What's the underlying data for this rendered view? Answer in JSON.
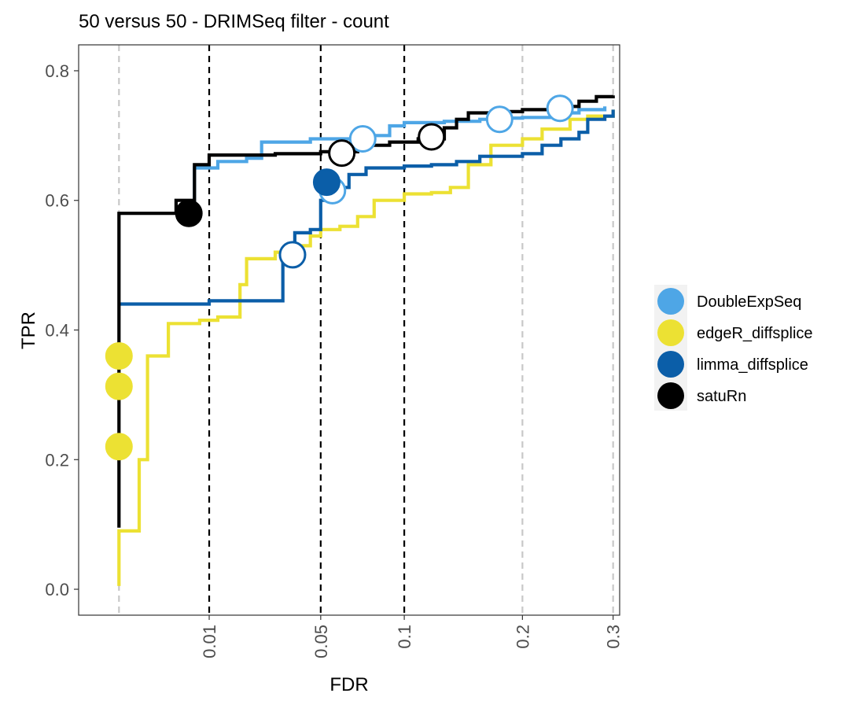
{
  "chart_data": {
    "type": "line",
    "title": "50 versus 50 - DRIMSeq filter - count",
    "xlabel": "FDR",
    "ylabel": "TPR",
    "x_scale": "sqrt",
    "xlim": [
      -0.002,
      0.308
    ],
    "ylim": [
      -0.04,
      0.84
    ],
    "x_ticks": [
      0.01,
      0.05,
      0.1,
      0.2,
      0.3
    ],
    "x_tick_labels": [
      "0.01",
      "0.05",
      "0.1",
      "0.2",
      "0.3"
    ],
    "y_ticks": [
      0.0,
      0.2,
      0.4,
      0.6,
      0.8
    ],
    "y_tick_labels": [
      "0.0",
      "0.2",
      "0.4",
      "0.6",
      "0.8"
    ],
    "fdr_thresholds": [
      0.01,
      0.05,
      0.1
    ],
    "grid_lines_x": [
      0,
      0.2,
      0.3
    ],
    "legend_position": "right",
    "series": [
      {
        "name": "DoubleExpSeq",
        "color": "#4ea6e6",
        "points": [
          [
            0.005,
            0.59
          ],
          [
            0.007,
            0.65
          ],
          [
            0.012,
            0.66
          ],
          [
            0.02,
            0.665
          ],
          [
            0.025,
            0.69
          ],
          [
            0.045,
            0.695
          ],
          [
            0.06,
            0.695
          ],
          [
            0.075,
            0.7
          ],
          [
            0.09,
            0.715
          ],
          [
            0.1,
            0.72
          ],
          [
            0.13,
            0.722
          ],
          [
            0.16,
            0.725
          ],
          [
            0.18,
            0.727
          ],
          [
            0.2,
            0.728
          ],
          [
            0.23,
            0.735
          ],
          [
            0.26,
            0.74
          ],
          [
            0.29,
            0.745
          ]
        ],
        "markers": [
          {
            "fdr": 0.056,
            "tpr": 0.615,
            "filled": false
          },
          {
            "fdr": 0.073,
            "tpr": 0.695,
            "filled": false
          },
          {
            "fdr": 0.178,
            "tpr": 0.725,
            "filled": false
          },
          {
            "fdr": 0.239,
            "tpr": 0.742,
            "filled": false
          }
        ]
      },
      {
        "name": "edgeR_diffsplice",
        "color": "#ece133",
        "points": [
          [
            0.0,
            0.005
          ],
          [
            0.0,
            0.09
          ],
          [
            0.0005,
            0.2
          ],
          [
            0.001,
            0.36
          ],
          [
            0.003,
            0.41
          ],
          [
            0.008,
            0.415
          ],
          [
            0.012,
            0.42
          ],
          [
            0.018,
            0.47
          ],
          [
            0.02,
            0.51
          ],
          [
            0.03,
            0.52
          ],
          [
            0.04,
            0.53
          ],
          [
            0.045,
            0.545
          ],
          [
            0.05,
            0.555
          ],
          [
            0.06,
            0.56
          ],
          [
            0.07,
            0.575
          ],
          [
            0.08,
            0.6
          ],
          [
            0.1,
            0.61
          ],
          [
            0.12,
            0.612
          ],
          [
            0.135,
            0.62
          ],
          [
            0.15,
            0.655
          ],
          [
            0.17,
            0.685
          ],
          [
            0.2,
            0.695
          ],
          [
            0.22,
            0.71
          ],
          [
            0.25,
            0.725
          ],
          [
            0.27,
            0.73
          ],
          [
            0.3,
            0.74
          ]
        ],
        "markers": [
          {
            "fdr": 0.0,
            "tpr": 0.36,
            "filled": true
          },
          {
            "fdr": 0.0,
            "tpr": 0.313,
            "filled": true
          },
          {
            "fdr": 0.0,
            "tpr": 0.22,
            "filled": true
          }
        ]
      },
      {
        "name": "limma_diffsplice",
        "color": "#0b5ea8",
        "points": [
          [
            0.0,
            0.44
          ],
          [
            0.01,
            0.445
          ],
          [
            0.028,
            0.445
          ],
          [
            0.033,
            0.515
          ],
          [
            0.038,
            0.55
          ],
          [
            0.045,
            0.555
          ],
          [
            0.05,
            0.6
          ],
          [
            0.058,
            0.62
          ],
          [
            0.065,
            0.64
          ],
          [
            0.075,
            0.65
          ],
          [
            0.1,
            0.653
          ],
          [
            0.12,
            0.655
          ],
          [
            0.14,
            0.66
          ],
          [
            0.16,
            0.668
          ],
          [
            0.2,
            0.672
          ],
          [
            0.22,
            0.685
          ],
          [
            0.24,
            0.695
          ],
          [
            0.26,
            0.705
          ],
          [
            0.27,
            0.725
          ],
          [
            0.29,
            0.73
          ],
          [
            0.3,
            0.74
          ]
        ],
        "markers": [
          {
            "fdr": 0.037,
            "tpr": 0.516,
            "filled": false
          },
          {
            "fdr": 0.053,
            "tpr": 0.628,
            "filled": true
          }
        ]
      },
      {
        "name": "satuRn",
        "color": "#000000",
        "points": [
          [
            0.0,
            0.095
          ],
          [
            0.0,
            0.58
          ],
          [
            0.004,
            0.6
          ],
          [
            0.007,
            0.655
          ],
          [
            0.01,
            0.67
          ],
          [
            0.03,
            0.672
          ],
          [
            0.05,
            0.675
          ],
          [
            0.07,
            0.685
          ],
          [
            0.09,
            0.69
          ],
          [
            0.11,
            0.695
          ],
          [
            0.13,
            0.712
          ],
          [
            0.14,
            0.725
          ],
          [
            0.15,
            0.735
          ],
          [
            0.18,
            0.737
          ],
          [
            0.2,
            0.74
          ],
          [
            0.23,
            0.745
          ],
          [
            0.26,
            0.753
          ],
          [
            0.28,
            0.76
          ],
          [
            0.3,
            0.762
          ]
        ],
        "markers": [
          {
            "fdr": 0.006,
            "tpr": 0.58,
            "filled": true
          },
          {
            "fdr": 0.061,
            "tpr": 0.673,
            "filled": false
          },
          {
            "fdr": 0.12,
            "tpr": 0.698,
            "filled": false
          }
        ]
      }
    ]
  }
}
